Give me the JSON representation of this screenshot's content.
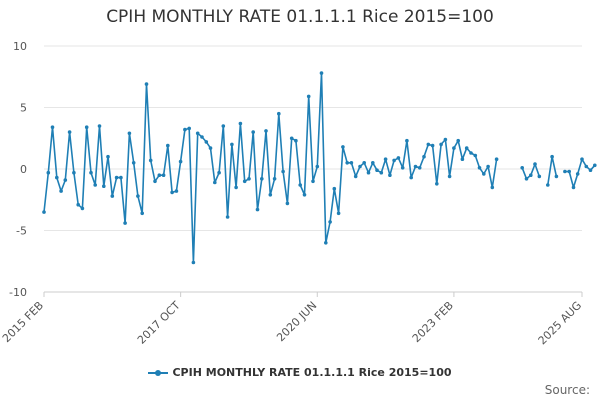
{
  "chart_data": {
    "type": "line",
    "title": "CPIH MONTHLY RATE 01.1.1.1 Rice 2015=100",
    "ylim": [
      -10,
      10
    ],
    "yticks": [
      10,
      5,
      0,
      -5,
      -10
    ],
    "x_tick_labels": [
      "2015 FEB",
      "2017 OCT",
      "2020 JUN",
      "2023 FEB",
      "2025 AUG"
    ],
    "x_tick_months": [
      "2015-02",
      "2017-10",
      "2020-06",
      "2023-02",
      "2025-08"
    ],
    "x_start": "2015-02",
    "x_end": "2025-08",
    "grid": true,
    "legend_position": "bottom",
    "series": [
      {
        "name": "CPIH MONTHLY RATE 01.1.1.1 Rice 2015=100",
        "color": "#1f7fb5",
        "values": [
          -3.5,
          -0.3,
          3.4,
          -0.7,
          -1.8,
          -0.9,
          3.0,
          -0.3,
          -2.9,
          -3.2,
          3.4,
          -0.3,
          -1.3,
          3.5,
          -1.4,
          1.0,
          -2.2,
          -0.7,
          -0.7,
          -4.4,
          2.9,
          0.5,
          -2.2,
          -3.6,
          6.9,
          0.7,
          -1.0,
          -0.5,
          -0.5,
          1.9,
          -1.9,
          -1.8,
          0.6,
          3.2,
          3.3,
          -7.6,
          2.9,
          2.6,
          2.2,
          1.7,
          -1.1,
          -0.3,
          3.5,
          -3.9,
          2.0,
          -1.5,
          3.7,
          -1.0,
          -0.8,
          3.0,
          -3.3,
          -0.8,
          3.1,
          -2.1,
          -0.8,
          4.5,
          -0.2,
          -2.8,
          2.5,
          2.3,
          -1.3,
          -2.1,
          5.9,
          -1.0,
          0.2,
          7.8,
          -6.0,
          -4.3,
          -1.6,
          -3.6,
          1.8,
          0.5,
          0.5,
          -0.6,
          0.2,
          0.5,
          -0.3,
          0.5,
          -0.1,
          -0.3,
          0.8,
          -0.5,
          0.7,
          0.9,
          0.1,
          2.3,
          -0.7,
          0.2,
          0.1,
          1.0,
          2.0,
          1.9,
          -1.2,
          2.0,
          2.4,
          -0.6,
          1.7,
          2.3,
          0.8,
          1.7,
          1.3,
          1.1,
          0.1,
          -0.4,
          0.2,
          -1.5,
          0.8,
          null,
          null,
          null,
          null,
          null,
          0.1,
          -0.8,
          -0.5,
          0.4,
          -0.6,
          null,
          -1.3,
          1.0,
          -0.6,
          null,
          -0.2,
          -0.2,
          -1.5,
          -0.4,
          0.8,
          0.2,
          -0.1,
          0.3
        ]
      }
    ]
  },
  "legend": {
    "label": "CPIH MONTHLY RATE 01.1.1.1 Rice 2015=100"
  },
  "source_label": "Source:"
}
